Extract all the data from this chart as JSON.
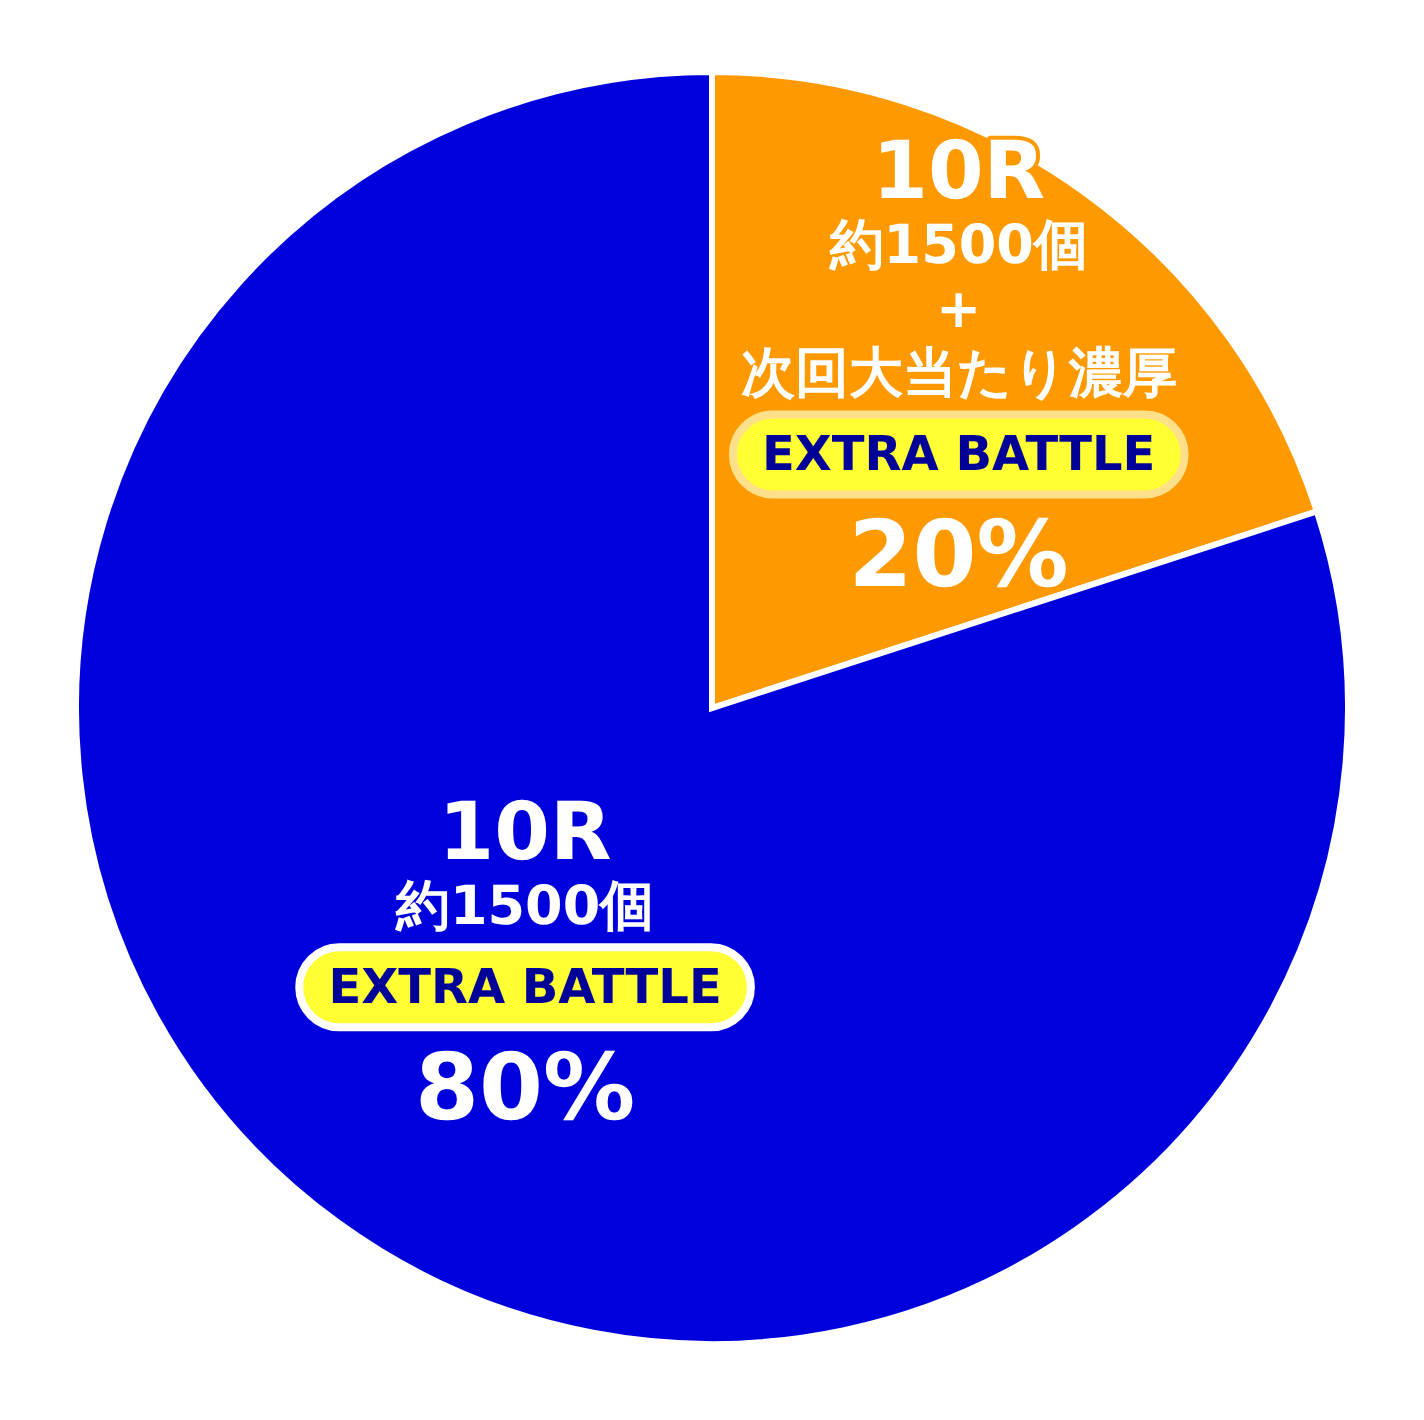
{
  "chart_data": {
    "type": "pie",
    "categories": [
      "10R\n約1500個\n+\n次回大当たり濃厚\nEXTRA BATTLE",
      "10R\n約1500個\nEXTRA BATTLE"
    ],
    "values": [
      20,
      80
    ],
    "colors": [
      "#ff9900",
      "#0000dd"
    ],
    "value_labels": [
      "20%",
      "80%"
    ]
  }
}
